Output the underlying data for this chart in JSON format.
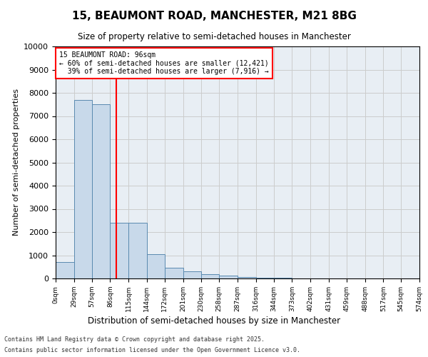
{
  "title1": "15, BEAUMONT ROAD, MANCHESTER, M21 8BG",
  "title2": "Size of property relative to semi-detached houses in Manchester",
  "xlabel": "Distribution of semi-detached houses by size in Manchester",
  "ylabel": "Number of semi-detached properties",
  "property_size": 96,
  "property_label": "15 BEAUMONT ROAD: 96sqm",
  "pct_smaller": 60,
  "count_smaller": 12421,
  "pct_larger": 39,
  "count_larger": 7916,
  "bin_edges": [
    0,
    29,
    57,
    86,
    115,
    144,
    172,
    201,
    230,
    258,
    287,
    316,
    344,
    373,
    402,
    431,
    459,
    488,
    517,
    545,
    574
  ],
  "bar_heights": [
    700,
    7700,
    7500,
    2400,
    2400,
    1050,
    450,
    300,
    175,
    120,
    75,
    30,
    20,
    10,
    5,
    2,
    1,
    0,
    0,
    0
  ],
  "bar_color": "#c8d9ea",
  "bar_edge_color": "#5a8ab0",
  "vline_color": "red",
  "annotation_box_color": "red",
  "grid_color": "#cccccc",
  "bg_color": "#e8eef4",
  "ylim": [
    0,
    10000
  ],
  "yticks": [
    0,
    1000,
    2000,
    3000,
    4000,
    5000,
    6000,
    7000,
    8000,
    9000,
    10000
  ],
  "footnote1": "Contains HM Land Registry data © Crown copyright and database right 2025.",
  "footnote2": "Contains public sector information licensed under the Open Government Licence v3.0."
}
